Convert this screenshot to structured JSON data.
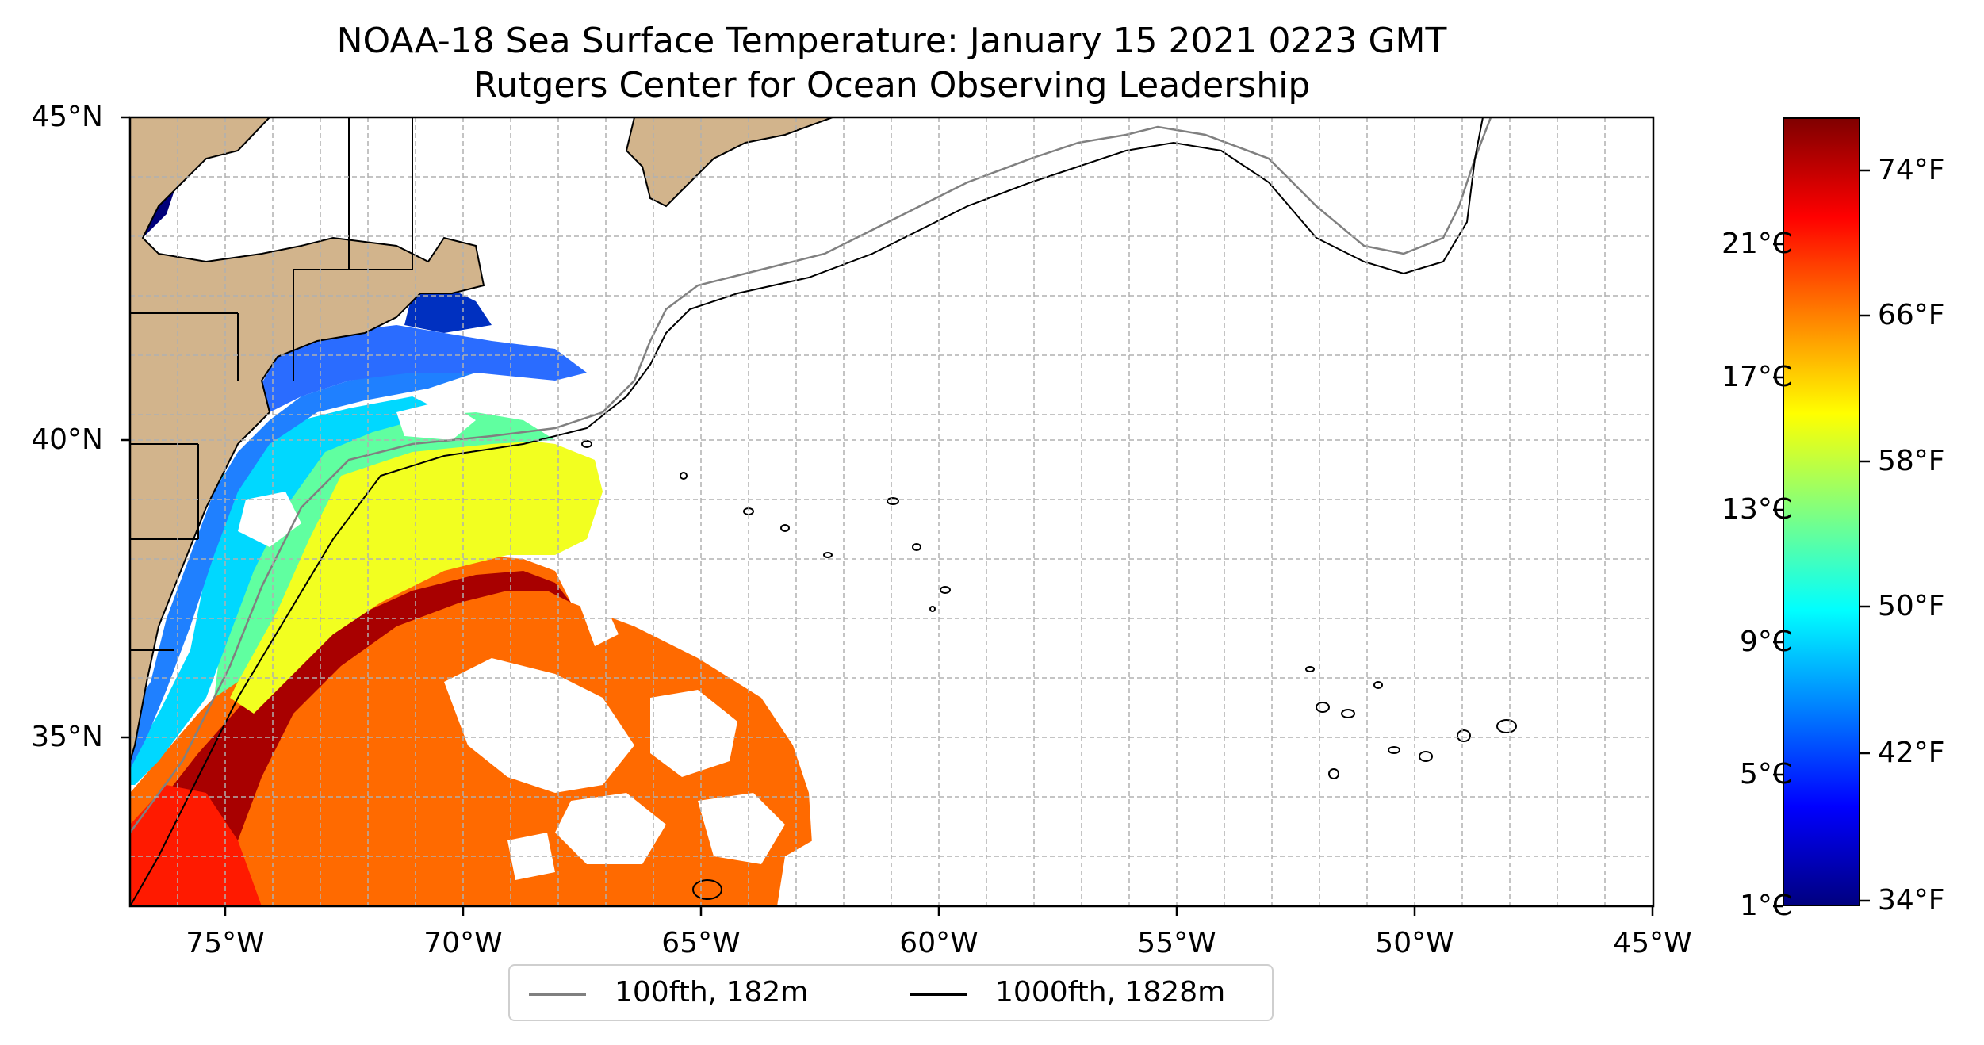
{
  "map": {
    "title_line1": "NOAA-18 Sea Surface Temperature: January 15 2021 0223 GMT",
    "title_line2": "Rutgers Center for Ocean Observing Leadership",
    "lat_ticks": [
      "45°N",
      "40°N",
      "35°N"
    ],
    "lon_ticks": [
      "75°W",
      "70°W",
      "65°W",
      "60°W",
      "55°W",
      "50°W",
      "45°W"
    ],
    "extent": {
      "lon_min": -77,
      "lon_max": -45,
      "lat_min": 32.2,
      "lat_max": 45
    },
    "land_color": "#d2b48c",
    "no_data_color": "#ffffff"
  },
  "legend": {
    "entries": [
      {
        "label": "100fth, 182m",
        "color": "#808080"
      },
      {
        "label": "1000fth, 1828m",
        "color": "#000000"
      }
    ]
  },
  "colorbar": {
    "colormap": "jet",
    "celsius_ticks": [
      "21°C",
      "17°C",
      "13°C",
      "9°C",
      "5°C",
      "1°C"
    ],
    "fahrenheit_ticks": [
      "74°F",
      "66°F",
      "58°F",
      "50°F",
      "42°F",
      "34°F"
    ],
    "colors": [
      "#800000",
      "#ff0000",
      "#ff8000",
      "#ffff00",
      "#80ff80",
      "#00ffff",
      "#0080ff",
      "#0000ff",
      "#000080"
    ]
  }
}
